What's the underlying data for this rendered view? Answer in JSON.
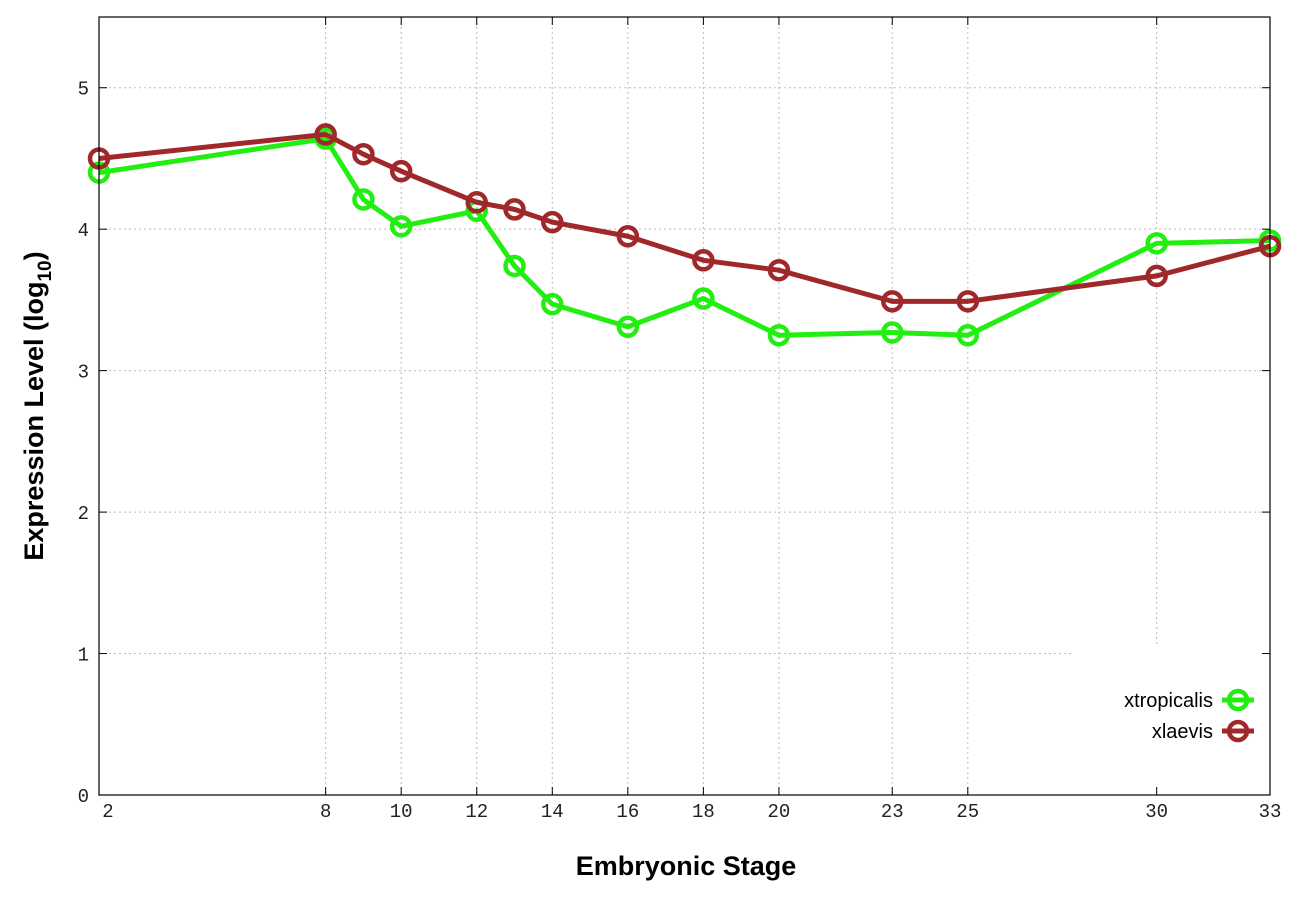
{
  "chart_data": {
    "type": "line",
    "title": "",
    "xlabel": "Embryonic Stage",
    "ylabel": "Expression Level (log",
    "ylabel_subscript": "10",
    "ylabel_suffix": ")",
    "xlim": [
      2,
      33
    ],
    "ylim": [
      0,
      5.5
    ],
    "xticks": [
      2,
      8,
      10,
      12,
      14,
      16,
      18,
      20,
      23,
      25,
      30,
      33
    ],
    "yticks": [
      0,
      1,
      2,
      3,
      4,
      5
    ],
    "grid": true,
    "legend_position": "bottom-right",
    "x": [
      2,
      8,
      9,
      10,
      12,
      13,
      14,
      16,
      18,
      20,
      23,
      25,
      30,
      33
    ],
    "series": [
      {
        "name": "xtropicalis",
        "color": "#22ee11",
        "values": [
          4.4,
          4.64,
          4.21,
          4.02,
          4.13,
          3.74,
          3.47,
          3.31,
          3.51,
          3.25,
          3.27,
          3.25,
          3.9,
          3.92
        ]
      },
      {
        "name": "xlaevis",
        "color": "#a0282a",
        "values": [
          4.5,
          4.67,
          4.53,
          4.41,
          4.19,
          4.14,
          4.05,
          3.95,
          3.78,
          3.71,
          3.49,
          3.49,
          3.67,
          3.88
        ]
      }
    ]
  }
}
